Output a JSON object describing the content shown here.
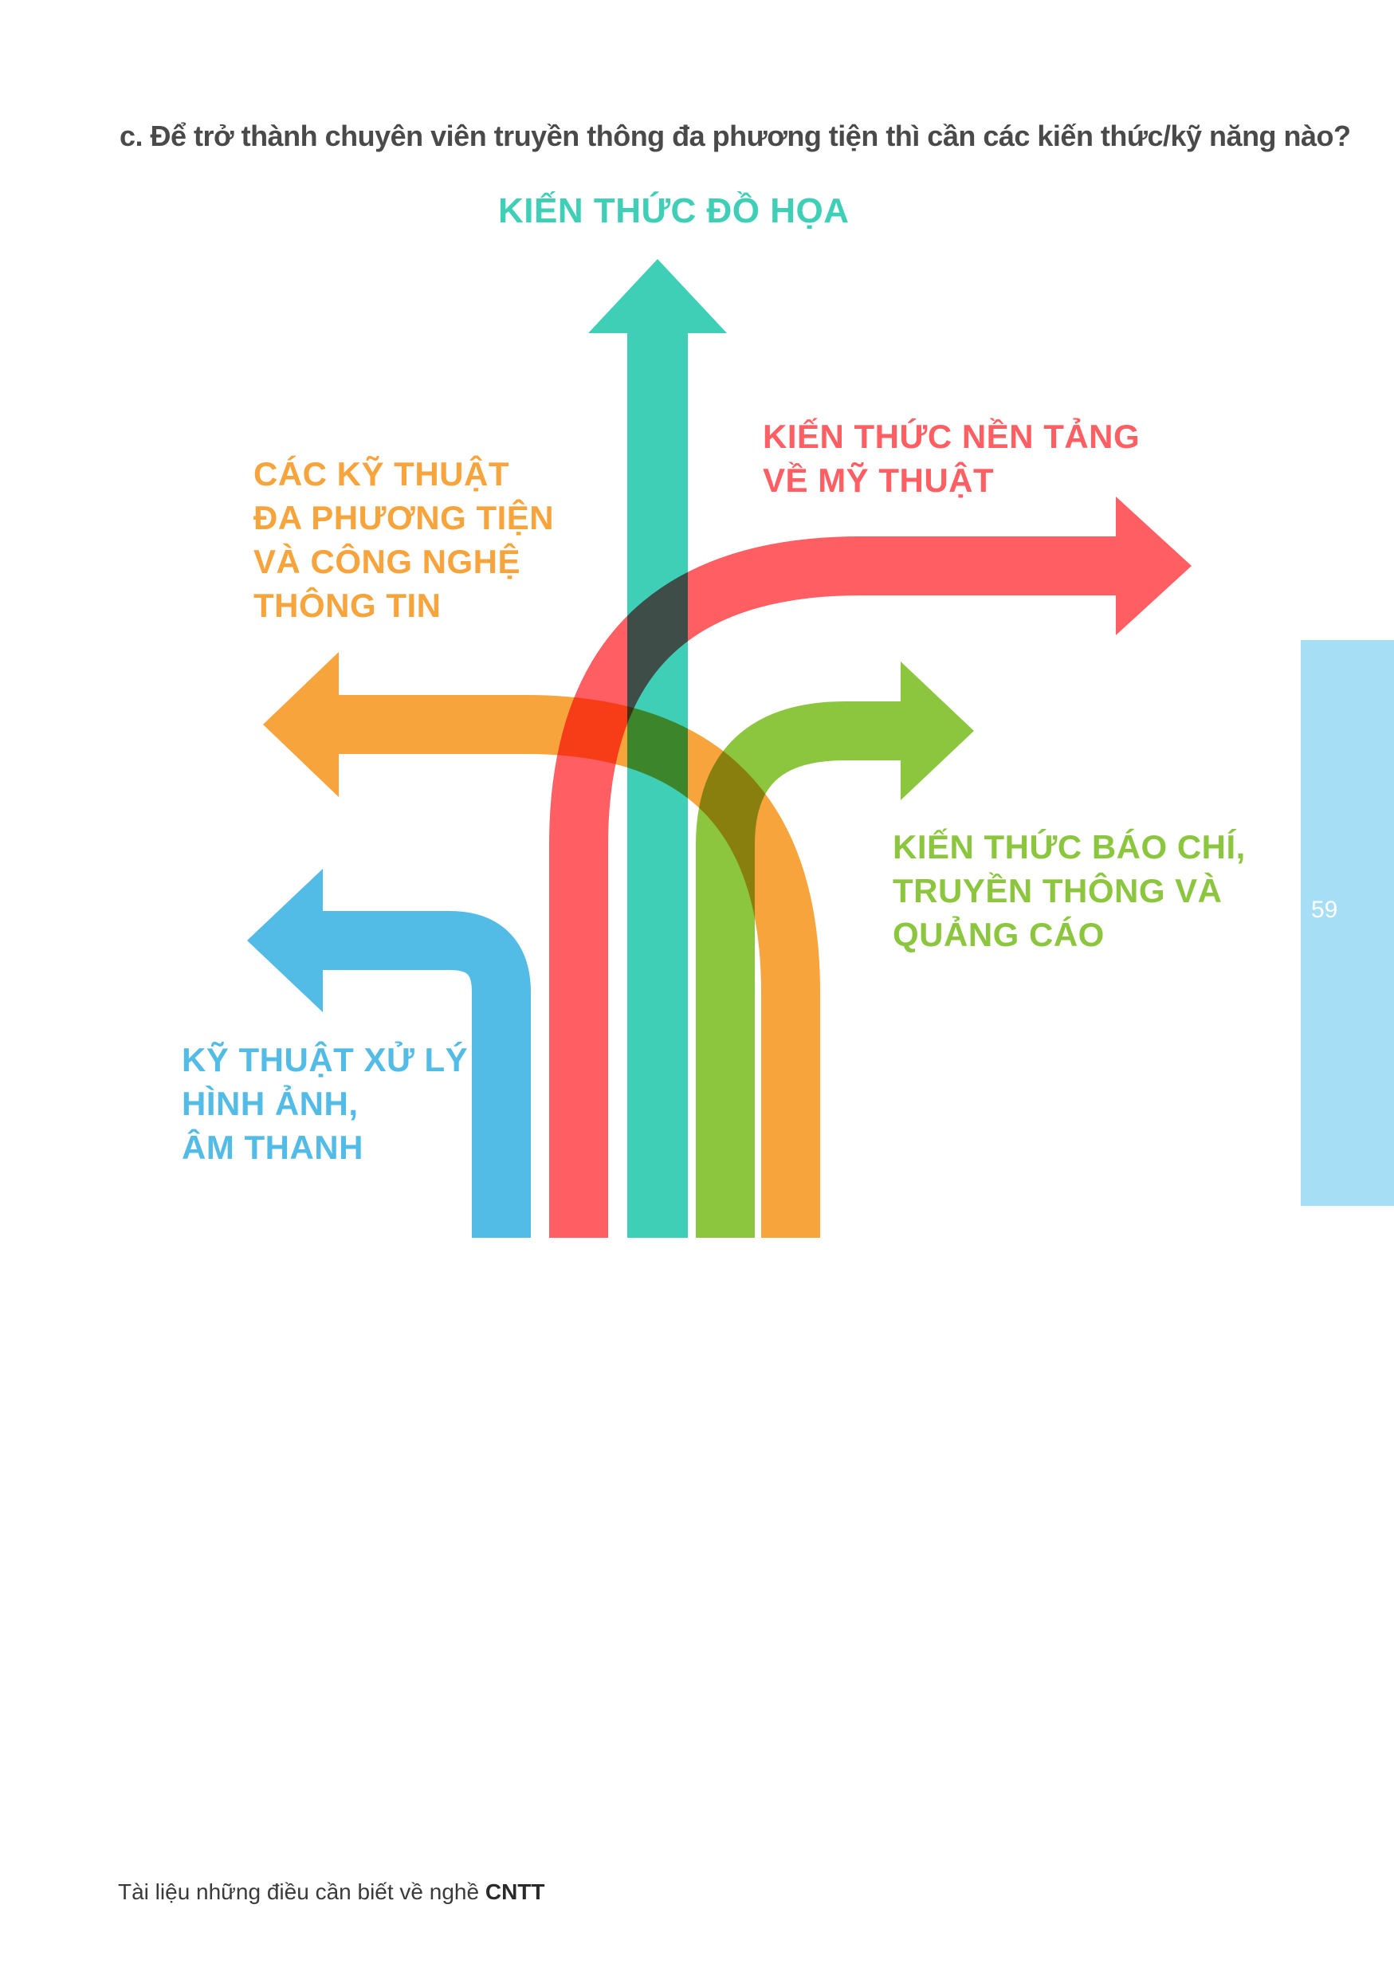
{
  "question": "c. Để trở thành chuyên viên truyền thông đa phương tiện thì cần các kiến thức/kỹ năng nào?",
  "labels": {
    "graphics": [
      "KIẾN THỨC ĐỒ HỌA"
    ],
    "arts": [
      "KIẾN THỨC NỀN TẢNG",
      "VỀ MỸ THUẬT"
    ],
    "multimedia": [
      "CÁC KỸ THUẬT",
      "ĐA PHƯƠNG TIỆN",
      "VÀ CÔNG NGHỆ",
      "THÔNG TIN"
    ],
    "journalism": [
      "KIẾN THỨC BÁO CHÍ,",
      "TRUYỀN THÔNG VÀ",
      "QUẢNG CÁO"
    ],
    "image_sound": [
      "KỸ THUẬT XỬ LÝ",
      "HÌNH ẢNH,",
      "ÂM THANH"
    ]
  },
  "colors": {
    "teal": "#3ecfb6",
    "red": "#ff5e63",
    "orange": "#f7a43c",
    "green": "#8cc63f",
    "blue": "#52bbe6",
    "side_tab": "#a6dff5"
  },
  "page_number": "59",
  "footer": {
    "text": "Tài liệu những điều cần biết về nghề ",
    "bold": "CNTT"
  }
}
